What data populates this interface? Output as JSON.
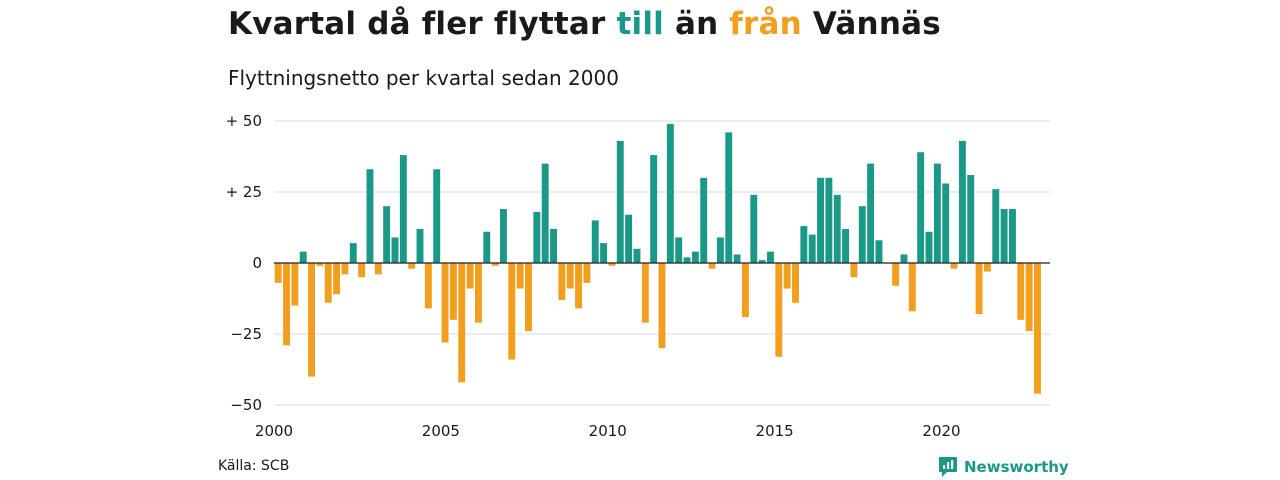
{
  "title": {
    "part1": "Kvartal då fler flyttar ",
    "till": "till",
    "part2": " än ",
    "fran": "från",
    "part3": " Vännäs"
  },
  "subtitle": "Flyttningsnetto per kvartal sedan 2000",
  "source": "Källa: SCB",
  "brand": "Newsworthy",
  "colors": {
    "positive": "#1a9988",
    "negative": "#f29f1f",
    "grid": "#d9d9d9",
    "zero": "#222222"
  },
  "chart_data": {
    "type": "bar",
    "title": "Kvartal då fler flyttar till än från Vännäs",
    "subtitle": "Flyttningsnetto per kvartal sedan 2000",
    "xlabel": "",
    "ylabel": "",
    "ylim": [
      -50,
      50
    ],
    "xlim": [
      2000,
      2023.25
    ],
    "grid": true,
    "y_ticks": [
      {
        "value": 50,
        "label": "+ 50"
      },
      {
        "value": 25,
        "label": "+ 25"
      },
      {
        "value": 0,
        "label": "0"
      },
      {
        "value": -25,
        "label": "−25"
      },
      {
        "value": -50,
        "label": "−50"
      }
    ],
    "x_ticks": [
      {
        "value": 2000,
        "label": "2000"
      },
      {
        "value": 2005,
        "label": "2005"
      },
      {
        "value": 2010,
        "label": "2010"
      },
      {
        "value": 2015,
        "label": "2015"
      },
      {
        "value": 2020,
        "label": "2020"
      }
    ],
    "start": "2000 Q1",
    "values": [
      -7,
      -29,
      -15,
      4,
      -40,
      -1,
      -14,
      -11,
      -4,
      7,
      -5,
      33,
      -4,
      20,
      9,
      38,
      -2,
      12,
      -16,
      33,
      -28,
      -20,
      -42,
      -9,
      -21,
      11,
      -1,
      19,
      -34,
      -9,
      -24,
      18,
      35,
      12,
      -13,
      -9,
      -16,
      -7,
      15,
      7,
      -1,
      43,
      17,
      5,
      -21,
      38,
      -30,
      49,
      9,
      2,
      4,
      30,
      -2,
      9,
      46,
      3,
      -19,
      24,
      1,
      4,
      -33,
      -9,
      -14,
      13,
      10,
      30,
      30,
      24,
      12,
      -5,
      20,
      35,
      8,
      0,
      -8,
      3,
      -17,
      39,
      11,
      35,
      28,
      -2,
      43,
      31,
      -18,
      -3,
      26,
      19,
      19,
      -20,
      -24,
      -46
    ]
  }
}
